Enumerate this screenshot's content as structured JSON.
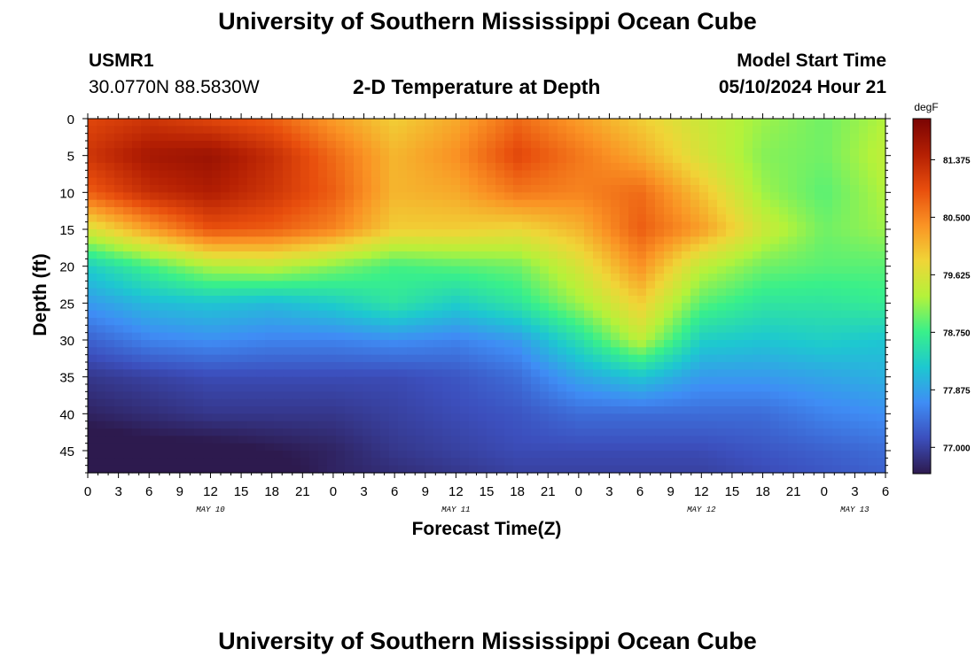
{
  "header": {
    "title": "University of Southern Mississippi Ocean Cube",
    "station_id": "USMR1",
    "station_location": "30.0770N  88.5830W",
    "subtitle": "2-D Temperature at Depth",
    "model_start_label": "Model Start Time",
    "model_start_value": "05/10/2024 Hour 21"
  },
  "footer": {
    "title": "University of Southern Mississippi Ocean Cube"
  },
  "chart_data": {
    "type": "heatmap",
    "title": "2-D Temperature at Depth",
    "xlabel": "Forecast Time(Z)",
    "ylabel": "Depth (ft)",
    "x_tick_labels": [
      "0",
      "3",
      "6",
      "9",
      "12",
      "15",
      "18",
      "21",
      "0",
      "3",
      "6",
      "9",
      "12",
      "15",
      "18",
      "21",
      "0",
      "3",
      "6",
      "9",
      "12",
      "15",
      "18",
      "21",
      "0",
      "3",
      "6"
    ],
    "x_hours": [
      0,
      78
    ],
    "date_labels": [
      {
        "label": "MAY 10",
        "hour": 12
      },
      {
        "label": "MAY 11",
        "hour": 36
      },
      {
        "label": "MAY 12",
        "hour": 60
      },
      {
        "label": "MAY 13",
        "hour": 75
      }
    ],
    "y_ticks": [
      0,
      5,
      10,
      15,
      20,
      25,
      30,
      35,
      40,
      45
    ],
    "ylim": [
      0,
      48
    ],
    "y_inverted": true,
    "colorbar": {
      "unit": "degF",
      "ticks": [
        "81.375",
        "80.500",
        "79.625",
        "78.750",
        "77.875",
        "77.000"
      ],
      "range": [
        76.6,
        82.0
      ],
      "colormap": [
        "#2d1a4e",
        "#3c4fbd",
        "#3f8df5",
        "#1dc8d0",
        "#39f08a",
        "#b4f23a",
        "#f0d537",
        "#fa9324",
        "#e84e0d",
        "#b41f03",
        "#7a0403"
      ]
    },
    "hours": [
      0,
      6,
      12,
      18,
      24,
      30,
      36,
      42,
      48,
      54,
      60,
      66,
      72,
      78
    ],
    "depths": [
      0,
      5,
      10,
      15,
      20,
      25,
      30,
      35,
      40,
      45,
      48
    ],
    "values": [
      [
        81.0,
        81.2,
        81.0,
        80.8,
        80.3,
        79.9,
        80.2,
        80.7,
        80.3,
        79.9,
        79.5,
        79.2,
        79.0,
        79.3
      ],
      [
        81.2,
        81.6,
        81.7,
        81.3,
        80.7,
        80.1,
        80.4,
        81.0,
        80.6,
        80.2,
        79.6,
        79.1,
        79.0,
        79.4
      ],
      [
        80.8,
        81.3,
        81.5,
        81.2,
        80.8,
        80.1,
        80.2,
        80.6,
        80.5,
        80.7,
        80.0,
        79.2,
        78.9,
        79.3
      ],
      [
        79.6,
        80.3,
        80.9,
        80.8,
        80.5,
        79.9,
        79.9,
        79.8,
        80.1,
        80.8,
        80.3,
        79.5,
        79.0,
        79.2
      ],
      [
        78.3,
        78.8,
        79.3,
        79.4,
        79.1,
        78.8,
        78.9,
        79.0,
        79.6,
        80.4,
        79.4,
        79.0,
        78.9,
        78.9
      ],
      [
        77.8,
        78.1,
        78.2,
        78.1,
        78.3,
        78.6,
        78.3,
        78.6,
        79.2,
        79.9,
        78.9,
        78.6,
        78.6,
        78.7
      ],
      [
        77.3,
        77.6,
        77.7,
        77.6,
        77.6,
        77.7,
        77.6,
        77.8,
        78.5,
        79.4,
        78.3,
        78.2,
        78.3,
        78.2
      ],
      [
        76.9,
        77.0,
        77.1,
        77.1,
        77.1,
        77.1,
        77.2,
        77.4,
        77.9,
        78.2,
        77.8,
        77.8,
        77.9,
        78.0
      ],
      [
        76.7,
        76.8,
        76.9,
        76.9,
        76.9,
        77.0,
        77.1,
        77.2,
        77.4,
        77.4,
        77.4,
        77.4,
        77.6,
        77.7
      ],
      [
        76.4,
        76.5,
        76.5,
        76.6,
        76.7,
        76.9,
        77.0,
        77.1,
        77.1,
        77.1,
        77.1,
        77.2,
        77.3,
        77.4
      ],
      [
        76.3,
        76.4,
        76.3,
        76.5,
        76.7,
        76.8,
        76.9,
        77.0,
        77.0,
        77.0,
        77.0,
        77.1,
        77.2,
        77.3
      ]
    ]
  }
}
